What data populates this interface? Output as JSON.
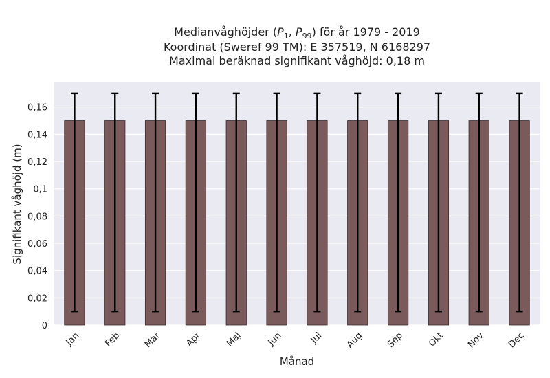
{
  "chart_data": {
    "type": "bar",
    "title": {
      "line1_prefix": "Medianvåghöjder (",
      "line1_p1": "P",
      "line1_p1_sub": "1",
      "line1_sep": ", ",
      "line1_p99": "P",
      "line1_p99_sub": "99",
      "line1_suffix": ") för år 1979 - 2019",
      "line2": "Koordinat (Sweref 99 TM): E 357519, N 6168297",
      "line3": "Maximal beräknad signifikant våghöjd: 0,18 m"
    },
    "xlabel": "Månad",
    "ylabel": "Signifikant våghöjd (m)",
    "categories": [
      "Jan",
      "Feb",
      "Mar",
      "Apr",
      "Maj",
      "Jun",
      "Jul",
      "Aug",
      "Sep",
      "Okt",
      "Nov",
      "Dec"
    ],
    "values": [
      0.15,
      0.15,
      0.15,
      0.15,
      0.15,
      0.15,
      0.15,
      0.15,
      0.15,
      0.15,
      0.15,
      0.15
    ],
    "error_low": [
      0.01,
      0.01,
      0.01,
      0.01,
      0.01,
      0.01,
      0.01,
      0.01,
      0.01,
      0.01,
      0.01,
      0.01
    ],
    "error_high": [
      0.17,
      0.17,
      0.17,
      0.17,
      0.17,
      0.17,
      0.17,
      0.17,
      0.17,
      0.17,
      0.17,
      0.17
    ],
    "ylim": [
      0,
      0.178
    ],
    "yticks": [
      0,
      0.02,
      0.04,
      0.06,
      0.08,
      0.1,
      0.12,
      0.14,
      0.16
    ],
    "ytick_labels": [
      "0",
      "0,02",
      "0,04",
      "0,06",
      "0,08",
      "0,1",
      "0,12",
      "0,14",
      "0,16"
    ],
    "grid": true,
    "colors": {
      "background": "#eaeaf2",
      "grid": "#ffffff",
      "bar": "#7a5a5a",
      "bar_edge": "#3a2a2a",
      "errorbar": "#000000"
    }
  }
}
